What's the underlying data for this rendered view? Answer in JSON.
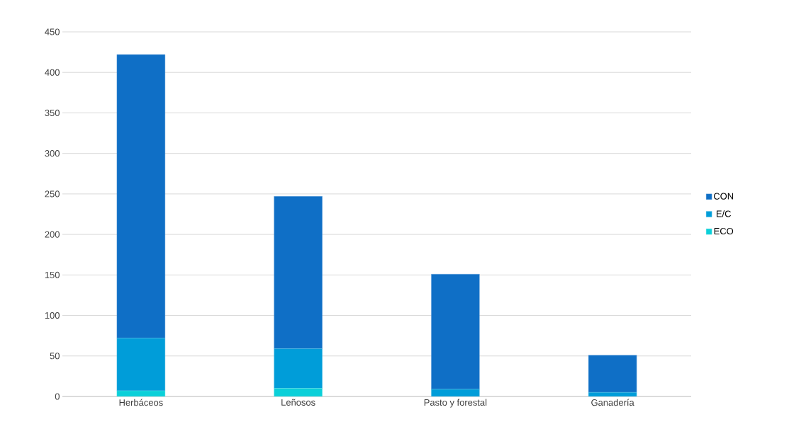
{
  "chart_data": {
    "type": "bar",
    "stacked": true,
    "categories": [
      "Herbáceos",
      "Leñosos",
      "Pasto y forestal",
      "Ganadería"
    ],
    "series": [
      {
        "name": "ECO",
        "color": "#0bd0d9",
        "values": [
          7,
          10,
          0,
          0
        ]
      },
      {
        "name": "E/C",
        "color": "#009dd9",
        "values": [
          65,
          49,
          9,
          5
        ]
      },
      {
        "name": "CON",
        "color": "#0f6fc6",
        "values": [
          350,
          188,
          142,
          46
        ]
      }
    ],
    "ylim": [
      0,
      450
    ],
    "yticks": [
      0,
      50,
      100,
      150,
      200,
      250,
      300,
      350,
      400,
      450
    ],
    "grid": "y",
    "legend": "right"
  }
}
